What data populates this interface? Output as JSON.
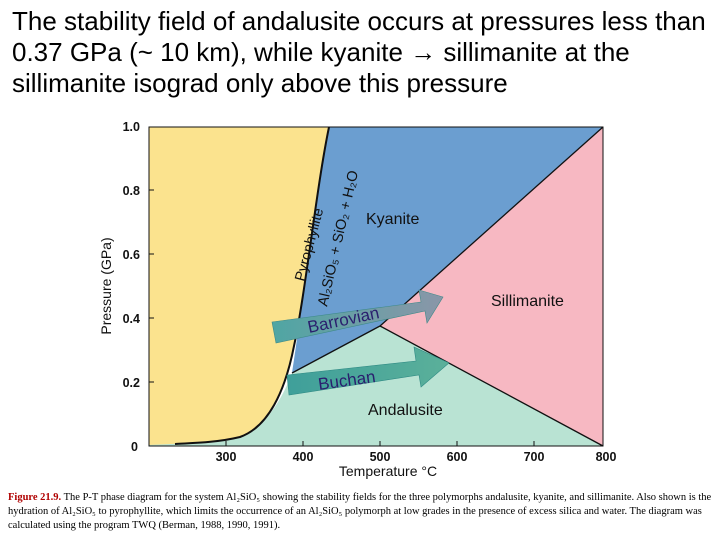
{
  "slide": {
    "title": "The stability field of andalusite occurs at pressures less than 0.37 GPa (~ 10 km), while kyanite → sillimanite at the sillimanite isograd only above this pressure"
  },
  "diagram": {
    "x_axis_title": "Temperature °C",
    "y_axis_title": "Pressure (GPa)",
    "x_ticks": [
      "300",
      "400",
      "500",
      "600",
      "700",
      "800"
    ],
    "y_ticks": [
      "0",
      "0.2",
      "0.4",
      "0.6",
      "0.8",
      "1.0"
    ],
    "x_range": [
      200,
      800
    ],
    "y_range": [
      0,
      1.0
    ],
    "fields": {
      "kyanite": "Kyanite",
      "sillimanite": "Sillimanite",
      "andalusite": "Andalusite",
      "pyrophyllite": "Pyrophyllite",
      "hydrous_assemblage": "Al₂SiO₅ + SiO₂ + H₂O"
    },
    "arrows": {
      "barrovian": "Barrovian",
      "buchan": "Buchan"
    },
    "colors": {
      "pyrophyllite_field": "#fbe38e",
      "kyanite_field": "#6b9ed0",
      "sillimanite_field": "#f7b8c2",
      "andalusite_field": "#b9e3d3",
      "arrow_start": "#4fa6a3",
      "arrow_end": "#8a96a8"
    }
  },
  "caption": {
    "figure_label": "Figure 21.9.",
    "text": " The P-T phase diagram for the system Al₂SiO₅ showing the stability fields for the three polymorphs andalusite, kyanite, and sillimanite. Also shown is the hydration of Al₂SiO₅ to pyrophyllite, which limits the occurrence of an Al₂SiO₅ polymorph at low grades in the presence of excess silica and water. The diagram was calculated using the program TWQ (Berman, 1988, 1990, 1991)."
  }
}
